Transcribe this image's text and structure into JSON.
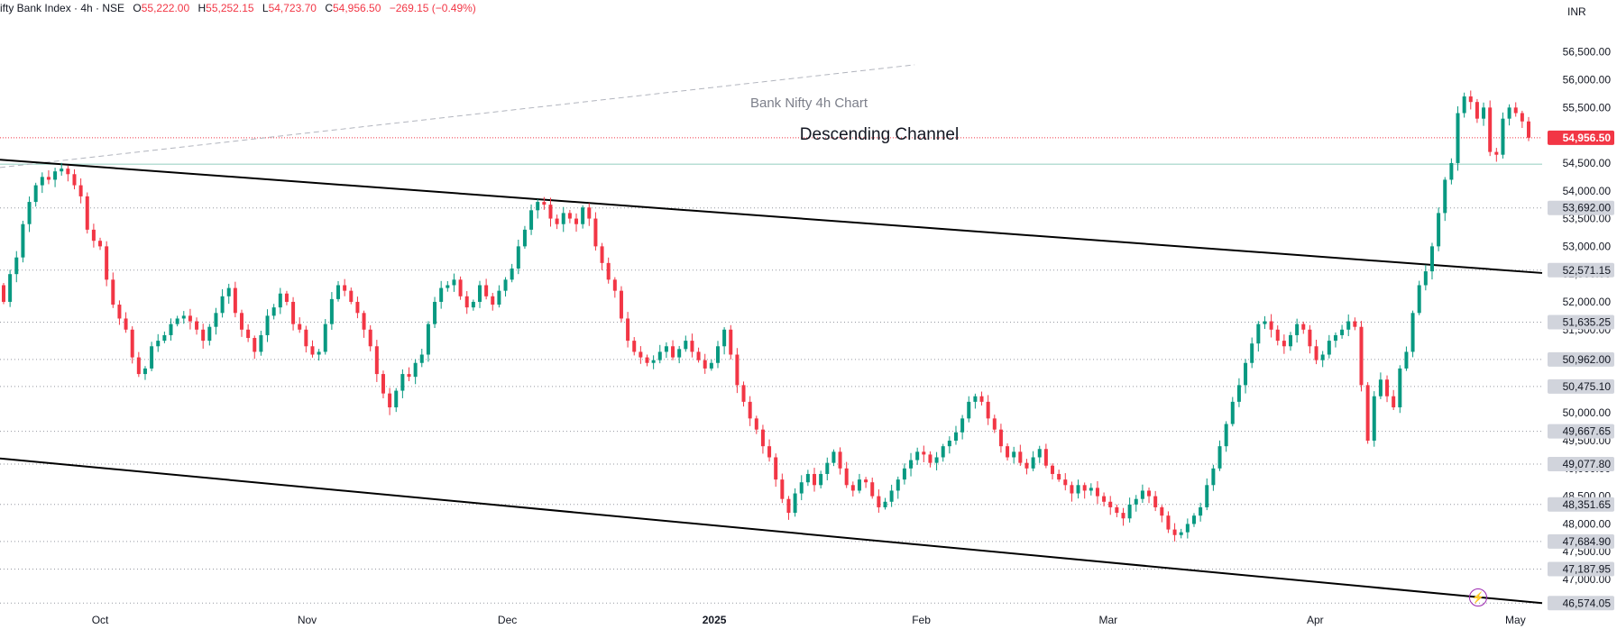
{
  "header": {
    "symbol": "ifty Bank Index · 4h · NSE",
    "open_label": "O",
    "open": "55,222.00",
    "high_label": "H",
    "high": "55,252.15",
    "low_label": "L",
    "low": "54,723.70",
    "close_label": "C",
    "close": "54,956.50",
    "change": "−269.15 (−0.49%)"
  },
  "currency": "INR",
  "annotations": {
    "subtitle": "Bank Nifty 4h Chart",
    "title": "Descending Channel"
  },
  "colors": {
    "up": "#089981",
    "down": "#f23645",
    "current_price": "#f23645",
    "channel": "#000000",
    "resistance_line": "#9fd3c7",
    "level_badge": "#d1d4dc"
  },
  "icons": {
    "bolt": "lightning-icon"
  },
  "chart_data": {
    "type": "candlestick",
    "interval": "4h",
    "ylim": [
      46400,
      56950
    ],
    "y_ticks": [
      56500,
      56000,
      55500,
      55000,
      54500,
      54000,
      53500,
      53000,
      52500,
      52000,
      51500,
      51000,
      50500,
      50000,
      49500,
      49000,
      48500,
      48000,
      47500,
      47000
    ],
    "y_tick_labels": [
      "56,500.00",
      "56,000.00",
      "55,500.00",
      "55,000.00",
      "54,500.00",
      "54,000.00",
      "53,500.00",
      "53,000.00",
      "52,500.00",
      "52,000.00",
      "51,500.00",
      "51,000.00",
      "50,500.00",
      "50,000.00",
      "49,500.00",
      "49,000.00",
      "48,500.00",
      "48,000.00",
      "47,500.00",
      "47,000.00"
    ],
    "x_labels": [
      "Oct",
      "Nov",
      "Dec",
      "2025",
      "Feb",
      "Mar",
      "Apr",
      "May"
    ],
    "current_price": {
      "value": 54956.5,
      "label": "54,956.50"
    },
    "horizontal_levels": [
      {
        "value": 53692.0,
        "label": "53,692.00"
      },
      {
        "value": 52571.15,
        "label": "52,571.15"
      },
      {
        "value": 51635.25,
        "label": "51,635.25"
      },
      {
        "value": 50962.0,
        "label": "50,962.00"
      },
      {
        "value": 50475.1,
        "label": "50,475.10"
      },
      {
        "value": 49667.65,
        "label": "49,667.65"
      },
      {
        "value": 49077.8,
        "label": "49,077.80"
      },
      {
        "value": 48351.65,
        "label": "48,351.65"
      },
      {
        "value": 47684.9,
        "label": "47,684.90"
      },
      {
        "value": 47187.95,
        "label": "47,187.95"
      },
      {
        "value": 46574.05,
        "label": "46,574.05"
      }
    ],
    "resistance_level": 54480,
    "channel_upper": {
      "start": [
        "2024-09-16",
        54560
      ],
      "end": [
        "2025-05-05",
        52520
      ]
    },
    "channel_lower": {
      "start": [
        "2024-09-16",
        49180
      ],
      "end": [
        "2025-05-05",
        46574
      ]
    },
    "trend_ray": {
      "start": [
        "2024-09-16",
        54420
      ],
      "end": [
        "2025-01-31",
        56270
      ]
    },
    "closes": [
      52000,
      52500,
      52800,
      53400,
      53800,
      54100,
      54250,
      54200,
      54350,
      54400,
      54300,
      54100,
      53900,
      53300,
      53100,
      53000,
      52400,
      51950,
      51700,
      51500,
      51000,
      50700,
      50800,
      51200,
      51300,
      51400,
      51600,
      51700,
      51750,
      51650,
      51500,
      51300,
      51550,
      51800,
      52100,
      52250,
      51800,
      51500,
      51350,
      51100,
      51400,
      51750,
      51900,
      52150,
      52000,
      51600,
      51500,
      51200,
      51050,
      51100,
      51600,
      52050,
      52300,
      52200,
      52000,
      51800,
      51500,
      51200,
      50700,
      50350,
      50100,
      50400,
      50700,
      50650,
      50900,
      51050,
      51600,
      52000,
      52250,
      52300,
      52400,
      52100,
      51900,
      52000,
      52300,
      52100,
      51950,
      52200,
      52400,
      52600,
      53000,
      53300,
      53650,
      53800,
      53750,
      53500,
      53400,
      53600,
      53500,
      53400,
      53700,
      53500,
      53000,
      52700,
      52400,
      52200,
      51700,
      51300,
      51100,
      51000,
      50900,
      50950,
      51100,
      51200,
      51000,
      51150,
      51300,
      51100,
      50950,
      50800,
      50900,
      51200,
      51500,
      51050,
      50500,
      50200,
      49900,
      49700,
      49400,
      49200,
      48800,
      48450,
      48200,
      48550,
      48750,
      48900,
      48700,
      48900,
      49100,
      49300,
      49000,
      48700,
      48600,
      48800,
      48750,
      48500,
      48300,
      48400,
      48600,
      48800,
      49000,
      49150,
      49300,
      49250,
      49100,
      49200,
      49400,
      49500,
      49650,
      49900,
      50200,
      50300,
      50200,
      49900,
      49700,
      49400,
      49200,
      49300,
      49100,
      49000,
      49200,
      49350,
      49050,
      48900,
      48800,
      48700,
      48550,
      48700,
      48600,
      48650,
      48500,
      48400,
      48300,
      48200,
      48100,
      48350,
      48450,
      48600,
      48500,
      48300,
      48150,
      47900,
      47800,
      47850,
      48000,
      48150,
      48300,
      48700,
      49000,
      49400,
      49800,
      50200,
      50500,
      50900,
      51250,
      51600,
      51650,
      51500,
      51300,
      51200,
      51400,
      51600,
      51500,
      51200,
      50950,
      51050,
      51300,
      51400,
      51500,
      51650,
      51550,
      50500,
      49500,
      50300,
      50600,
      50300,
      50100,
      50800,
      51100,
      51800,
      52300,
      52550,
      53000,
      53600,
      54200,
      54500,
      55400,
      55700,
      55600,
      55300,
      55500,
      54700,
      54650,
      55300,
      55500,
      55400,
      55250,
      54956.5
    ]
  }
}
